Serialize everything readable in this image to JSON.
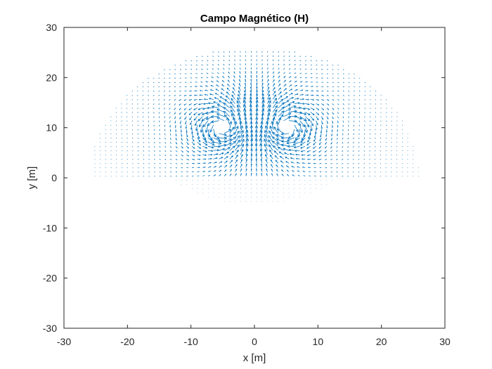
{
  "chart_data": {
    "type": "quiver",
    "title": "Campo Magnético (H)",
    "xlabel": "x [m]",
    "ylabel": "y [m]",
    "xlim": [
      -30,
      30
    ],
    "ylim": [
      -30,
      30
    ],
    "xticks": [
      "-30",
      "-20",
      "-10",
      "0",
      "10",
      "20",
      "30"
    ],
    "yticks": [
      "30",
      "20",
      "10",
      "0",
      "-10",
      "-20",
      "-30"
    ],
    "xtick_values": [
      -30,
      -20,
      -10,
      0,
      10,
      20,
      30
    ],
    "ytick_values": [
      30,
      20,
      10,
      0,
      -10,
      -20,
      -30
    ],
    "grid": false,
    "box": true,
    "arrow_color": "#0072BD",
    "axis_color": "#262626",
    "background": "#ffffff",
    "field": {
      "sources": [
        {
          "x": -5,
          "y": 10,
          "radius": 3.2,
          "circulation": "counterclockwise"
        },
        {
          "x": 5,
          "y": 10,
          "radius": 3.2,
          "circulation": "clockwise"
        }
      ],
      "domain_radius": 26,
      "upper_cutoff_y": 25.5,
      "grid_spacing": 0.85
    }
  }
}
